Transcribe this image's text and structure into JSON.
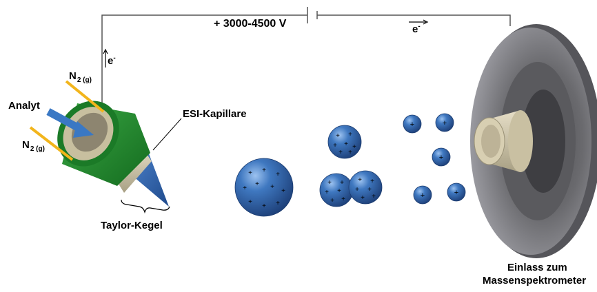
{
  "labels": {
    "voltage": "+ 3000-4500 V",
    "electron_left": "e",
    "electron_right": "e",
    "electron_charge": "-",
    "analyte": "Analyt",
    "n2_top": "N",
    "n2_bottom": "N",
    "n2_subscript": "2 (g)",
    "capillary": "ESI-Kapillare",
    "taylor_cone": "Taylor-Kegel",
    "inlet_line1": "Einlass zum",
    "inlet_line2": "Massenspektrometer"
  },
  "colors": {
    "circuit_line": "#555555",
    "droplet": "#2f63a6",
    "droplet_highlight": "#8fb6e8",
    "nozzle_green": "#1f8a2c",
    "analyte_arrow": "#3a78c4",
    "gas_arrow": "#f2b51c",
    "capillary_tan": "#cfc5a8",
    "inlet_disc": "#6e6e72"
  },
  "icons": {
    "charge": "plus-sign",
    "arrow_up": "up-arrow",
    "arrow_right": "right-arrow"
  }
}
